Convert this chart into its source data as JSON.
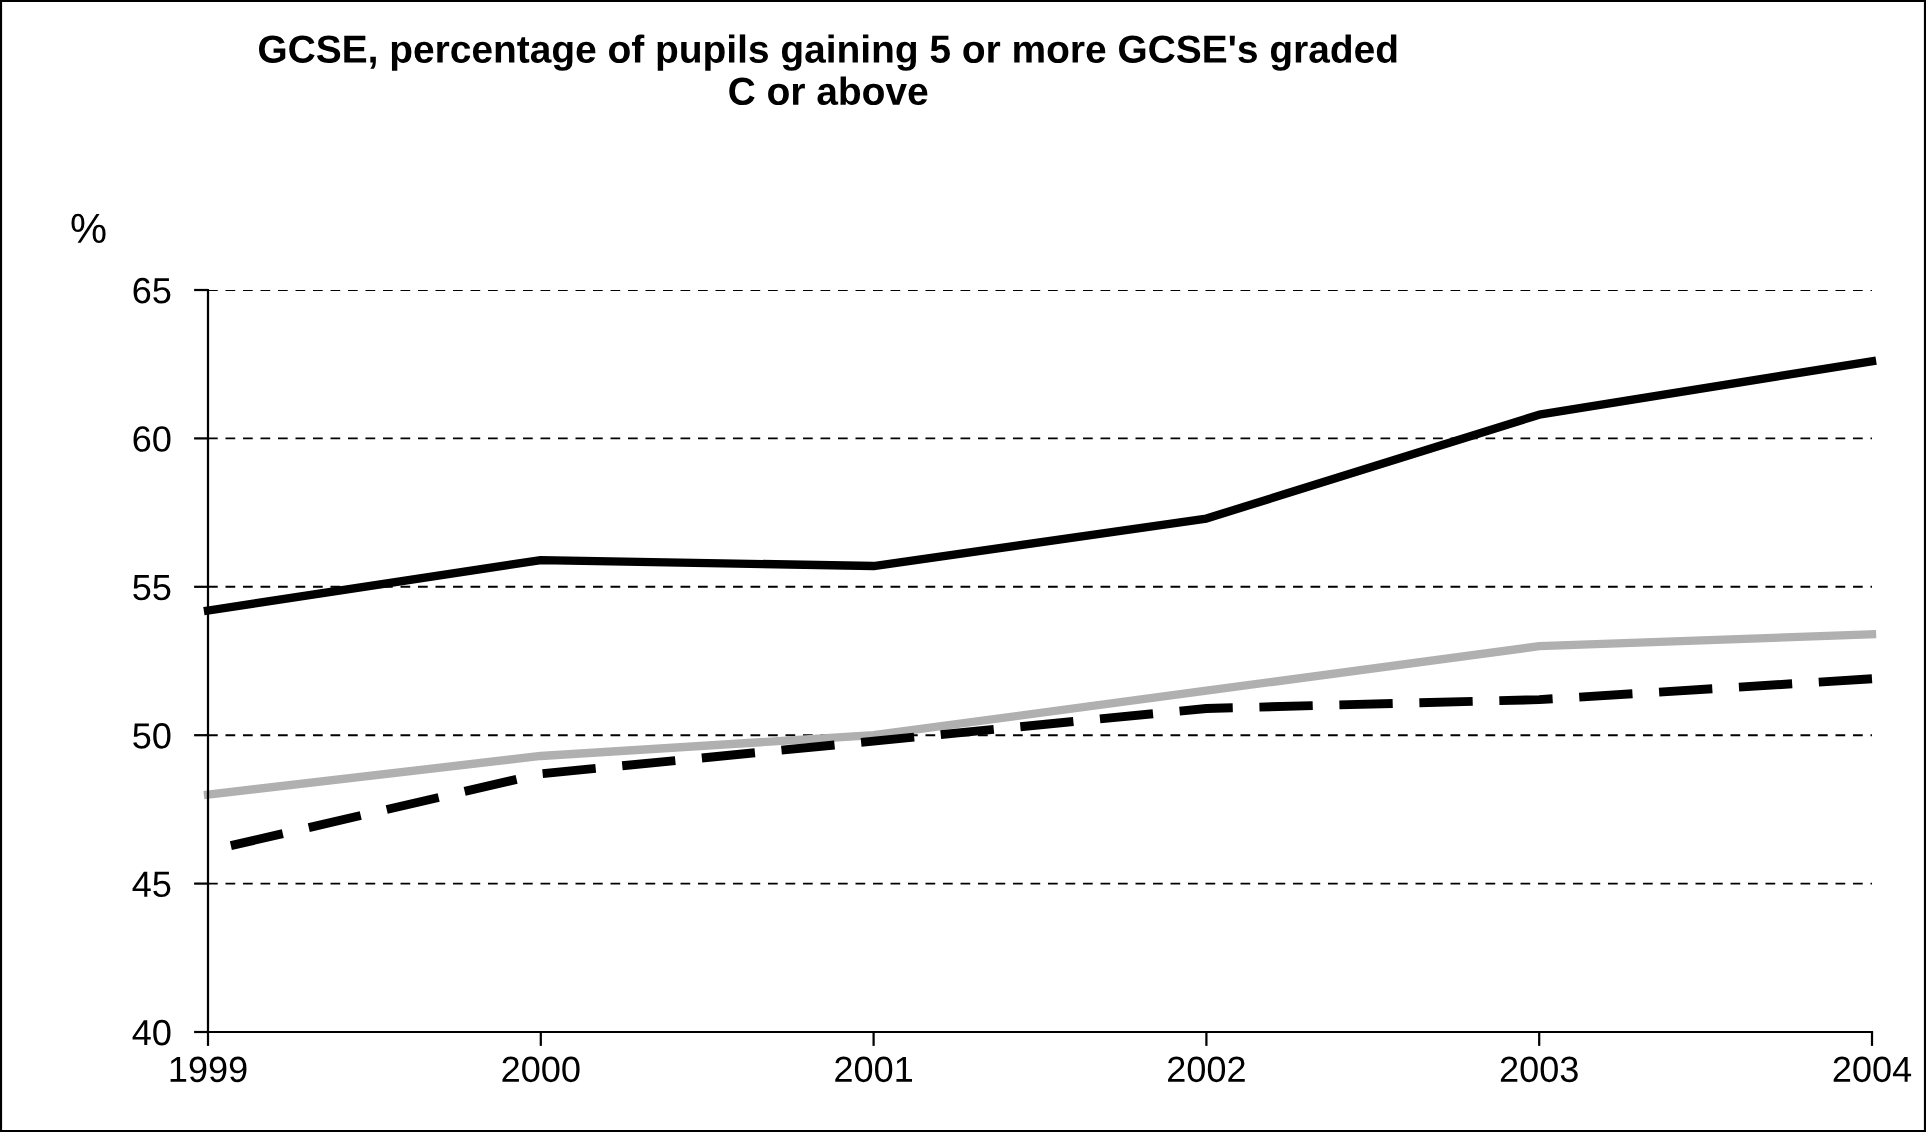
{
  "chart_data": {
    "type": "line",
    "title": "GCSE, percentage of pupils gaining 5 or more GCSE's graded\nC or above",
    "ylabel": "%",
    "x": [
      1999,
      2000,
      2001,
      2002,
      2003,
      2004
    ],
    "series": [
      {
        "color": "#000000",
        "line_style": "solid",
        "values": [
          54.2,
          55.9,
          55.7,
          57.3,
          60.8,
          62.6
        ]
      },
      {
        "color": "#b0b0b0",
        "line_style": "solid",
        "values": [
          48.0,
          49.3,
          50.0,
          51.5,
          53.0,
          53.4
        ]
      },
      {
        "color": "#000000",
        "line_style": "dashed",
        "values": [
          46.1,
          48.7,
          49.8,
          50.9,
          51.2,
          51.9
        ]
      }
    ],
    "xlim": [
      1999,
      2004
    ],
    "xticks": [
      1999,
      2000,
      2001,
      2002,
      2003,
      2004
    ],
    "ylim": [
      40,
      65
    ],
    "yticks": [
      40,
      45,
      50,
      55,
      60,
      65
    ],
    "grid": "y",
    "legend": false,
    "marker": "none"
  }
}
